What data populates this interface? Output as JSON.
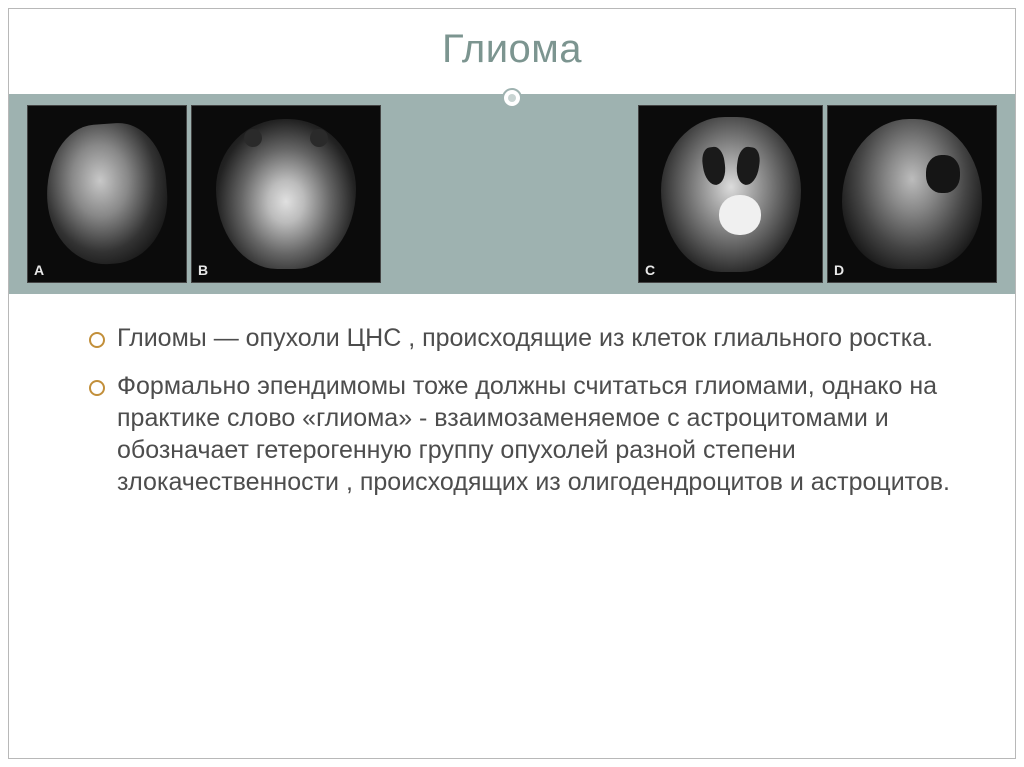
{
  "title": "Глиома",
  "title_color": "#7c9590",
  "body_color": "#4d4d4d",
  "band_color": "#9eb2b0",
  "divider_color": "#9eb2b0",
  "bullet_color": "#c28f3a",
  "images": {
    "left": {
      "tags": [
        "A",
        "B"
      ]
    },
    "right": {
      "tags": [
        "C",
        "D"
      ]
    }
  },
  "bullets": [
    "Глиомы — опухоли ЦНС , происходящие из клеток глиального ростка.",
    "Формально эпендимомы тоже должны считаться глиомами, однако на практике слово «глиома» - взаимозаменяемое с астроцитомами и обозначает гетерогенную группу опухолей разной степени  злокачественности , происходящих из олигодендроцитов и астроцитов."
  ]
}
